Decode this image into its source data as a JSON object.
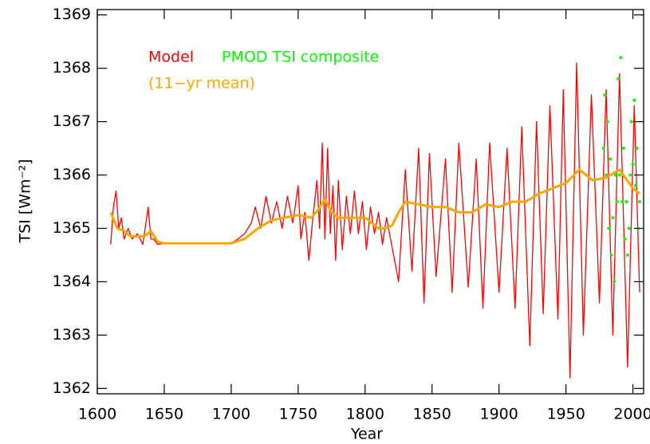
{
  "chart_data": {
    "type": "line",
    "x_label": "Year",
    "y_label": "TSI [Wm⁻²]",
    "xlim": [
      1600,
      2008
    ],
    "ylim": [
      1361.9,
      1369.1
    ],
    "xticks": [
      1600,
      1650,
      1700,
      1750,
      1800,
      1850,
      1900,
      1950,
      2000
    ],
    "yticks": [
      1362,
      1363,
      1364,
      1365,
      1366,
      1367,
      1368,
      1369
    ],
    "grid": false,
    "series": [
      {
        "name": "Model",
        "color": "#ff0000",
        "mode": "lines",
        "x": [
          1610,
          1612,
          1614,
          1616,
          1618,
          1620,
          1623,
          1626,
          1630,
          1634,
          1638,
          1640,
          1642,
          1645,
          1650,
          1700,
          1705,
          1710,
          1715,
          1718,
          1722,
          1726,
          1730,
          1734,
          1738,
          1742,
          1746,
          1750,
          1752,
          1755,
          1758,
          1761,
          1764,
          1766,
          1768,
          1770,
          1772,
          1774,
          1776,
          1778,
          1780,
          1783,
          1786,
          1789,
          1792,
          1795,
          1798,
          1801,
          1804,
          1807,
          1810,
          1813,
          1816,
          1819,
          1825,
          1830,
          1835,
          1840,
          1844,
          1848,
          1853,
          1860,
          1865,
          1870,
          1877,
          1883,
          1888,
          1893,
          1900,
          1906,
          1912,
          1917,
          1923,
          1928,
          1933,
          1938,
          1944,
          1948,
          1953,
          1958,
          1963,
          1969,
          1975,
          1980,
          1985,
          1990,
          1996,
          2001,
          2005
        ],
        "values": [
          1364.7,
          1365.4,
          1365.7,
          1365.0,
          1365.2,
          1364.8,
          1365.0,
          1364.8,
          1364.9,
          1364.7,
          1365.4,
          1364.8,
          1364.8,
          1364.7,
          1364.72,
          1364.72,
          1364.8,
          1364.9,
          1365.1,
          1365.4,
          1365.0,
          1365.6,
          1365.1,
          1365.5,
          1365.0,
          1365.6,
          1365.1,
          1365.8,
          1364.8,
          1365.3,
          1364.4,
          1365.2,
          1365.9,
          1365.0,
          1366.6,
          1364.8,
          1366.5,
          1364.9,
          1365.8,
          1364.4,
          1365.9,
          1364.6,
          1365.6,
          1364.9,
          1365.7,
          1364.9,
          1365.5,
          1364.6,
          1365.4,
          1364.9,
          1365.3,
          1364.7,
          1365.2,
          1364.8,
          1364.0,
          1366.1,
          1364.2,
          1366.5,
          1363.6,
          1366.4,
          1364.1,
          1366.3,
          1363.8,
          1366.6,
          1363.9,
          1366.3,
          1363.5,
          1366.6,
          1363.8,
          1366.5,
          1363.5,
          1366.9,
          1362.8,
          1367.0,
          1363.4,
          1367.3,
          1363.3,
          1367.6,
          1362.2,
          1368.1,
          1363.0,
          1367.5,
          1363.6,
          1367.6,
          1363.0,
          1367.9,
          1362.4,
          1367.3,
          1363.8
        ]
      },
      {
        "name": "PMOD TSI composite",
        "color": "#00ff00",
        "mode": "markers",
        "x": [
          1978,
          1979,
          1980,
          1981,
          1982,
          1983,
          1984,
          1985,
          1986,
          1987,
          1988,
          1989,
          1990,
          1991,
          1992,
          1993,
          1994,
          1995,
          1996,
          1997,
          1998,
          1999,
          2000,
          2001,
          2002,
          2003,
          2004,
          2005
        ],
        "values": [
          1366.5,
          1367.5,
          1366.0,
          1367.0,
          1365.0,
          1366.3,
          1364.5,
          1365.2,
          1364.0,
          1366.0,
          1365.5,
          1367.8,
          1366.0,
          1368.2,
          1365.5,
          1366.5,
          1364.8,
          1365.5,
          1364.5,
          1365.0,
          1366.0,
          1367.0,
          1366.2,
          1367.4,
          1365.8,
          1366.5,
          1365.0,
          1365.5
        ]
      },
      {
        "name": "(11−yr mean)",
        "color": "#ffa500",
        "mode": "lines",
        "x": [
          1610,
          1615,
          1620,
          1625,
          1630,
          1635,
          1640,
          1645,
          1650,
          1700,
          1710,
          1720,
          1730,
          1740,
          1750,
          1760,
          1765,
          1770,
          1775,
          1780,
          1790,
          1800,
          1810,
          1815,
          1820,
          1825,
          1830,
          1840,
          1850,
          1860,
          1870,
          1880,
          1890,
          1900,
          1910,
          1920,
          1930,
          1940,
          1950,
          1960,
          1970,
          1980,
          1990,
          2000,
          2005
        ],
        "values": [
          1365.3,
          1365.0,
          1364.95,
          1364.85,
          1364.85,
          1364.85,
          1364.95,
          1364.75,
          1364.72,
          1364.72,
          1364.8,
          1365.0,
          1365.15,
          1365.2,
          1365.25,
          1365.2,
          1365.35,
          1365.55,
          1365.3,
          1365.2,
          1365.2,
          1365.2,
          1365.0,
          1365.0,
          1365.05,
          1365.3,
          1365.5,
          1365.45,
          1365.4,
          1365.4,
          1365.3,
          1365.3,
          1365.45,
          1365.4,
          1365.5,
          1365.5,
          1365.65,
          1365.75,
          1365.85,
          1366.1,
          1365.9,
          1365.95,
          1366.1,
          1365.75,
          1365.65
        ]
      }
    ]
  }
}
